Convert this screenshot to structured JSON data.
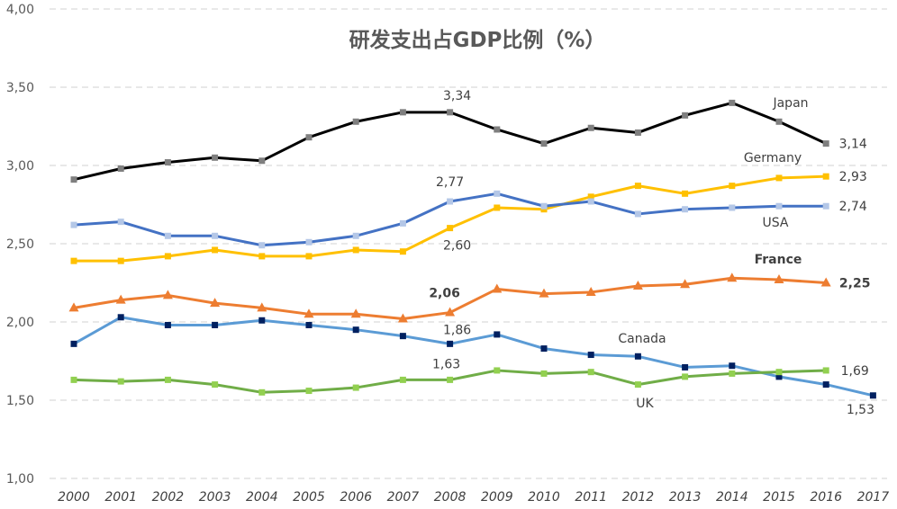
{
  "chart_data": {
    "type": "line",
    "title": "研发支出占GDP比例（%）",
    "xlabel": "",
    "ylabel": "",
    "ylim": [
      1.0,
      4.0
    ],
    "y_ticks": [
      "1,00",
      "1,50",
      "2,00",
      "2,50",
      "3,00",
      "3,50",
      "4,00"
    ],
    "x": [
      "2000",
      "2001",
      "2002",
      "2003",
      "2004",
      "2005",
      "2006",
      "2007",
      "2008",
      "2009",
      "2010",
      "2011",
      "2012",
      "2013",
      "2014",
      "2015",
      "2016",
      "2017"
    ],
    "grid": true,
    "series": [
      {
        "name": "Japan",
        "color": "#000000",
        "marker": "square",
        "marker_color": "#7f7f7f",
        "values": [
          2.91,
          2.98,
          3.02,
          3.05,
          3.03,
          3.18,
          3.28,
          3.34,
          3.34,
          3.23,
          3.14,
          3.24,
          3.21,
          3.32,
          3.4,
          3.28,
          3.14,
          null
        ]
      },
      {
        "name": "Germany",
        "color": "#ffc000",
        "marker": "square",
        "marker_color": "#ffc000",
        "values": [
          2.39,
          2.39,
          2.42,
          2.46,
          2.42,
          2.42,
          2.46,
          2.45,
          2.6,
          2.73,
          2.72,
          2.8,
          2.87,
          2.82,
          2.87,
          2.92,
          2.93,
          null
        ]
      },
      {
        "name": "USA",
        "color": "#4472c4",
        "marker": "square",
        "marker_color": "#b4c7e7",
        "values": [
          2.62,
          2.64,
          2.55,
          2.55,
          2.49,
          2.51,
          2.55,
          2.63,
          2.77,
          2.82,
          2.74,
          2.77,
          2.69,
          2.72,
          2.73,
          2.74,
          2.74,
          null
        ]
      },
      {
        "name": "France",
        "color": "#ed7d31",
        "marker": "triangle",
        "marker_color": "#ed7d31",
        "values": [
          2.09,
          2.14,
          2.17,
          2.12,
          2.09,
          2.05,
          2.05,
          2.02,
          2.06,
          2.21,
          2.18,
          2.19,
          2.23,
          2.24,
          2.28,
          2.27,
          2.25,
          null
        ]
      },
      {
        "name": "Canada",
        "color": "#5b9bd5",
        "marker": "square",
        "marker_color": "#002060",
        "values": [
          1.86,
          2.03,
          1.98,
          1.98,
          2.01,
          1.98,
          1.95,
          1.91,
          1.86,
          1.92,
          1.83,
          1.79,
          1.78,
          1.71,
          1.72,
          1.65,
          1.6,
          1.53
        ]
      },
      {
        "name": "UK",
        "color": "#70ad47",
        "marker": "square",
        "marker_color": "#92d050",
        "values": [
          1.63,
          1.62,
          1.63,
          1.6,
          1.55,
          1.56,
          1.58,
          1.63,
          1.63,
          1.69,
          1.67,
          1.68,
          1.6,
          1.65,
          1.67,
          1.68,
          1.69,
          null
        ]
      }
    ],
    "annotations": [
      {
        "text": "3,34",
        "series": "Japan",
        "year": "2008",
        "bold": false
      },
      {
        "text": "3,14",
        "series": "Japan",
        "year": "2016",
        "bold": false
      },
      {
        "text": "2,77",
        "series": "USA",
        "year": "2008",
        "bold": false
      },
      {
        "text": "2,60",
        "series": "Germany",
        "year": "2008",
        "bold": false
      },
      {
        "text": "2,93",
        "series": "Germany",
        "year": "2016",
        "bold": false
      },
      {
        "text": "2,74",
        "series": "USA",
        "year": "2016",
        "bold": false
      },
      {
        "text": "2,06",
        "series": "France",
        "year": "2008",
        "bold": true
      },
      {
        "text": "2,25",
        "series": "France",
        "year": "2016",
        "bold": true
      },
      {
        "text": "1,86",
        "series": "Canada",
        "year": "2008",
        "bold": false
      },
      {
        "text": "1,63",
        "series": "UK",
        "year": "2008",
        "bold": false
      },
      {
        "text": "1,69",
        "series": "UK",
        "year": "2016",
        "bold": false
      },
      {
        "text": "1,53",
        "series": "Canada",
        "year": "2017",
        "bold": false
      }
    ],
    "series_labels": [
      {
        "text": "Japan",
        "bold": false
      },
      {
        "text": "Germany",
        "bold": false
      },
      {
        "text": "USA",
        "bold": false
      },
      {
        "text": "France",
        "bold": true
      },
      {
        "text": "Canada",
        "bold": false
      },
      {
        "text": "UK",
        "bold": false
      }
    ]
  }
}
